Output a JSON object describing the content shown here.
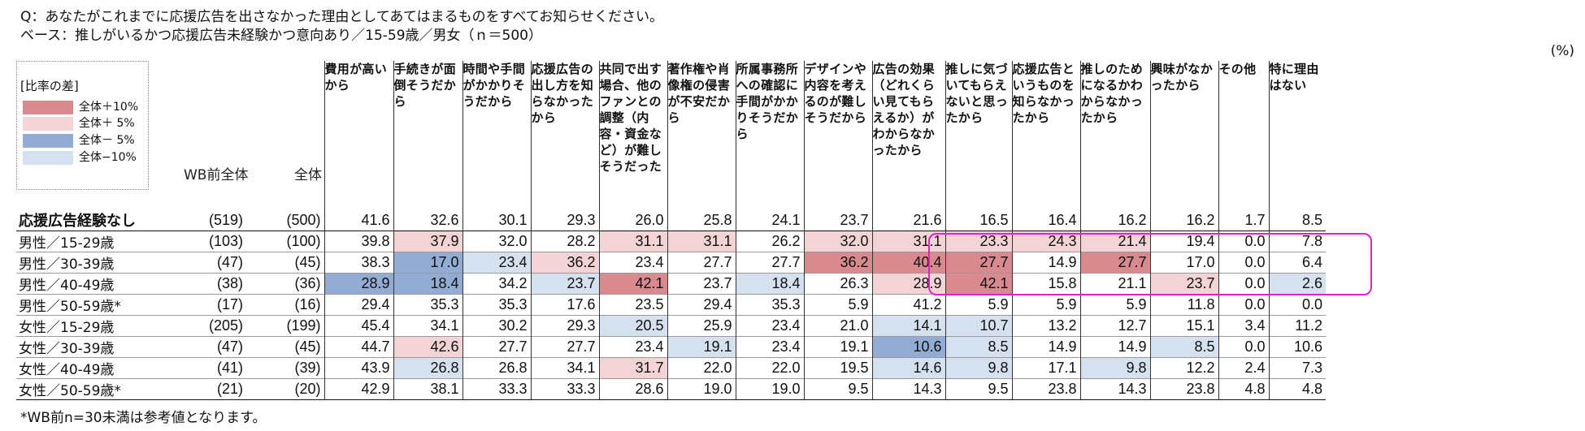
{
  "question": "Q：あなたがこれまでに応援広告を出さなかった理由としてあてはまるものをすべてお知らせください。",
  "base": "ベース：推しがいるかつ応援広告未経験かつ意向あり／15-59歳／男女（ｎ＝500）",
  "unit": "(%)",
  "legend": {
    "title": "[比率の差]",
    "items": [
      {
        "label": "全体＋10%",
        "color": "#d88a8f"
      },
      {
        "label": "全体＋ 5%",
        "color": "#f3d4d6"
      },
      {
        "label": "全体－ 5%",
        "color": "#92acd4"
      },
      {
        "label": "全体−10%",
        "color": "#d6e1f0"
      }
    ]
  },
  "col_wb": "WB前全体",
  "col_all": "全体",
  "footnote": "*WB前n=30未満は参考値となります。",
  "colors": {
    "plus10": "#d88a8f",
    "plus5": "#f3d4d6",
    "minus10": "#92acd4",
    "minus5": "#d6e1f0",
    "highlight": "#e020c8"
  },
  "chart_data": {
    "type": "table",
    "columns": [
      "費用が高いから",
      "手続きが面倒そうだから",
      "時間や手間がかかりそうだから",
      "応援広告の出し方を知らなかったから",
      "共同で出す場合、他のファンとの調整（内容・資金など）が難しそうだった",
      "著作権や肖像権の侵害が不安だから",
      "所属事務所への確認に手間がかかりそうだから",
      "デザインや内容を考えるのが難しそうだから",
      "広告の効果（どれくらい見てもらえるか）がわからなかったから",
      "推しに気づいてもらえないと思ったから",
      "応援広告というものを知らなかったから",
      "推しのためになるかわからなかったから",
      "興味がなかったから",
      "その他",
      "特に理由はない"
    ],
    "rows": [
      {
        "label": "応援広告経験なし",
        "wb_n": "(519)",
        "n": "(500)",
        "values": [
          "41.6",
          "32.6",
          "30.1",
          "29.3",
          "26.0",
          "25.8",
          "24.1",
          "23.7",
          "21.6",
          "16.5",
          "16.4",
          "16.2",
          "16.2",
          "1.7",
          "8.5"
        ],
        "shade": [
          0,
          0,
          0,
          0,
          0,
          0,
          0,
          0,
          0,
          0,
          0,
          0,
          0,
          0,
          0
        ]
      },
      {
        "label": "男性／15-29歳",
        "wb_n": "(103)",
        "n": "(100)",
        "values": [
          "39.8",
          "37.9",
          "32.0",
          "28.2",
          "31.1",
          "31.1",
          "26.2",
          "32.0",
          "31.1",
          "23.3",
          "24.3",
          "21.4",
          "19.4",
          "0.0",
          "7.8"
        ],
        "shade": [
          0,
          1,
          0,
          0,
          1,
          1,
          0,
          1,
          1,
          1,
          1,
          1,
          0,
          0,
          0
        ]
      },
      {
        "label": "男性／30-39歳",
        "wb_n": "(47)",
        "n": "(45)",
        "values": [
          "38.3",
          "17.0",
          "23.4",
          "36.2",
          "23.4",
          "27.7",
          "27.7",
          "36.2",
          "40.4",
          "27.7",
          "14.9",
          "27.7",
          "17.0",
          "0.0",
          "6.4"
        ],
        "shade": [
          0,
          -2,
          -1,
          1,
          0,
          0,
          0,
          2,
          2,
          2,
          0,
          2,
          0,
          0,
          0
        ]
      },
      {
        "label": "男性／40-49歳",
        "wb_n": "(38)",
        "n": "(36)",
        "values": [
          "28.9",
          "18.4",
          "34.2",
          "23.7",
          "42.1",
          "23.7",
          "18.4",
          "26.3",
          "28.9",
          "42.1",
          "15.8",
          "21.1",
          "23.7",
          "0.0",
          "2.6"
        ],
        "shade": [
          -2,
          -2,
          0,
          -1,
          2,
          0,
          -1,
          0,
          1,
          2,
          0,
          0,
          1,
          0,
          -1
        ]
      },
      {
        "label": "男性／50-59歳*",
        "wb_n": "(17)",
        "n": "(16)",
        "values": [
          "29.4",
          "35.3",
          "35.3",
          "17.6",
          "23.5",
          "29.4",
          "35.3",
          "5.9",
          "41.2",
          "5.9",
          "5.9",
          "5.9",
          "11.8",
          "0.0",
          "0.0"
        ],
        "shade": [
          0,
          0,
          0,
          0,
          0,
          0,
          0,
          0,
          0,
          0,
          0,
          0,
          0,
          0,
          0
        ]
      },
      {
        "label": "女性／15-29歳",
        "wb_n": "(205)",
        "n": "(199)",
        "values": [
          "45.4",
          "34.1",
          "30.2",
          "29.3",
          "20.5",
          "25.9",
          "23.4",
          "21.0",
          "14.1",
          "10.7",
          "13.2",
          "12.7",
          "15.1",
          "3.4",
          "11.2"
        ],
        "shade": [
          0,
          0,
          0,
          0,
          -1,
          0,
          0,
          0,
          -1,
          -1,
          0,
          0,
          0,
          0,
          0
        ]
      },
      {
        "label": "女性／30-39歳",
        "wb_n": "(47)",
        "n": "(45)",
        "values": [
          "44.7",
          "42.6",
          "27.7",
          "27.7",
          "23.4",
          "19.1",
          "23.4",
          "19.1",
          "10.6",
          "8.5",
          "14.9",
          "14.9",
          "8.5",
          "0.0",
          "10.6"
        ],
        "shade": [
          0,
          1,
          0,
          0,
          0,
          -1,
          0,
          0,
          -2,
          -1,
          0,
          0,
          -1,
          0,
          0
        ]
      },
      {
        "label": "女性／40-49歳",
        "wb_n": "(41)",
        "n": "(39)",
        "values": [
          "43.9",
          "26.8",
          "26.8",
          "34.1",
          "31.7",
          "22.0",
          "22.0",
          "19.5",
          "14.6",
          "9.8",
          "17.1",
          "9.8",
          "12.2",
          "2.4",
          "7.3"
        ],
        "shade": [
          0,
          -1,
          0,
          0,
          1,
          0,
          0,
          0,
          -1,
          -1,
          0,
          -1,
          0,
          0,
          0
        ]
      },
      {
        "label": "女性／50-59歳*",
        "wb_n": "(21)",
        "n": "(20)",
        "values": [
          "42.9",
          "38.1",
          "33.3",
          "33.3",
          "28.6",
          "19.0",
          "19.0",
          "9.5",
          "14.3",
          "9.5",
          "23.8",
          "14.3",
          "23.8",
          "4.8",
          "4.8"
        ],
        "shade": [
          0,
          0,
          0,
          0,
          0,
          0,
          0,
          0,
          0,
          0,
          0,
          0,
          0,
          0,
          0
        ]
      }
    ]
  }
}
